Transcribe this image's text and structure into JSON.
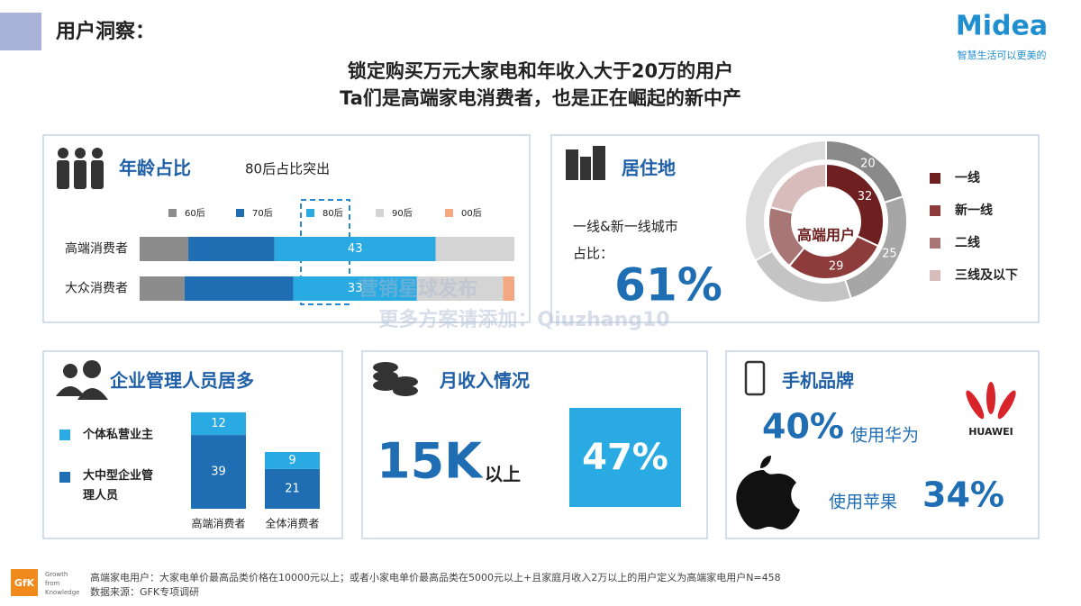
{
  "header": {
    "title": "用户洞察：",
    "brand": "Midea",
    "slogan": "智慧生活可以更美的"
  },
  "headline": [
    "锁定购买万元大家电和年收入大于20万的用户",
    "Ta们是高端家电消费者，也是正在崛起的新中产"
  ],
  "age": {
    "type": "stacked-bar",
    "title": "年龄占比",
    "note": "80后占比突出",
    "categories": [
      "高端消费者",
      "大众消费者"
    ],
    "series": [
      {
        "name": "60后",
        "color": "#8c8c8c",
        "values": [
          13,
          12
        ]
      },
      {
        "name": "70后",
        "color": "#1f6db3",
        "values": [
          23,
          29
        ]
      },
      {
        "name": "80后",
        "color": "#2aaae2",
        "values": [
          43,
          33
        ],
        "value_labels": [
          "43",
          "33"
        ]
      },
      {
        "name": "90后",
        "color": "#d4d4d4",
        "values": [
          21,
          23
        ]
      },
      {
        "name": "00后",
        "color": "#f4a882",
        "values": [
          0,
          3
        ]
      }
    ]
  },
  "residence": {
    "type": "donut",
    "title": "居住地",
    "text": "一线&新一线城市",
    "text2": "占比：",
    "share": "61%",
    "center_label": "高端用户",
    "categories": [
      "一线",
      "新一线",
      "二线",
      "三线及以下"
    ],
    "colors": [
      "#6e2020",
      "#8e3b3b",
      "#a97676",
      "#d8bcbc"
    ],
    "inner": {
      "values": [
        32,
        29,
        18,
        21
      ],
      "value_labels": [
        "32",
        "29",
        null,
        null
      ]
    },
    "outer": {
      "colors": [
        "#8a8a8a",
        "#a6a6a6",
        "#c4c4c4",
        "#dcdcdc"
      ],
      "values": [
        20,
        25,
        22,
        33
      ],
      "value_labels": [
        "20",
        "25",
        null,
        null
      ]
    }
  },
  "management": {
    "type": "stacked-column",
    "title": "企业管理人员居多",
    "categories": [
      "高端消费者",
      "全体消费者"
    ],
    "series": [
      {
        "name": "大中型企业管理人员",
        "color": "#1f6db3",
        "values": [
          39,
          21
        ]
      },
      {
        "name": "个体私营业主",
        "color": "#2aaae2",
        "values": [
          12,
          9
        ]
      }
    ]
  },
  "income": {
    "title": "月收入情况",
    "amount": "15K",
    "amount_suffix": "以上",
    "share": "47%"
  },
  "phone": {
    "title": "手机品牌",
    "huawei_share": "40%",
    "huawei_text": "使用华为",
    "apple_text": "使用苹果",
    "apple_share": "34%",
    "huawei_logo": "HUAWEI"
  },
  "watermark": [
    "营销星球发布",
    "更多方案请添加：Qiuzhang10"
  ],
  "footer": {
    "logo": "GfK",
    "tagline": [
      "Growth",
      "from",
      "Knowledge"
    ],
    "notes": [
      "高端家电用户：大家电单价最高品类价格在10000元以上；或者小家电单价最高品类在5000元以上+且家庭月收入2万以上的用户定义为高端家电用户N=458",
      "数据来源：GFK专项调研"
    ]
  }
}
